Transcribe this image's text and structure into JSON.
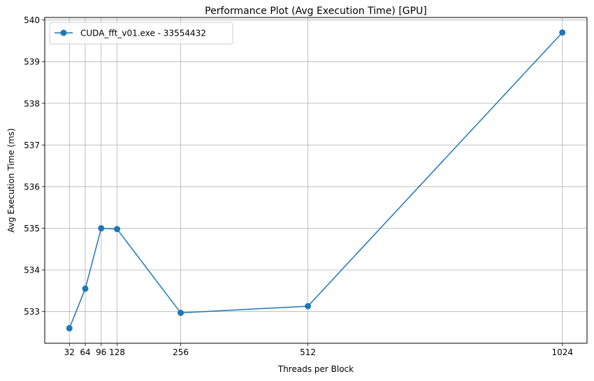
{
  "chart_data": {
    "type": "line",
    "title": "Performance Plot (Avg Execution Time) [GPU]",
    "xlabel": "Threads per Block",
    "ylabel": "Avg Execution Time (ms)",
    "x": [
      32,
      64,
      96,
      128,
      256,
      512,
      1024
    ],
    "x_tick_labels": [
      "32",
      "64",
      "96",
      "128",
      "256",
      "512",
      "1024"
    ],
    "y_ticks": [
      533,
      534,
      535,
      536,
      537,
      538,
      539,
      540
    ],
    "y_tick_labels": [
      "533",
      "534",
      "535",
      "536",
      "537",
      "538",
      "539",
      "540"
    ],
    "xlim": [
      -17.6,
      1073.6
    ],
    "ylim": [
      532.24,
      540.06
    ],
    "grid": true,
    "legend_position": "upper-left",
    "series": [
      {
        "name": "CUDA_fft_v01.exe - 33554432",
        "color": "#1f77b4",
        "marker": "circle",
        "values": [
          532.6,
          533.55,
          535.0,
          534.98,
          532.97,
          533.13,
          539.7
        ]
      }
    ]
  }
}
